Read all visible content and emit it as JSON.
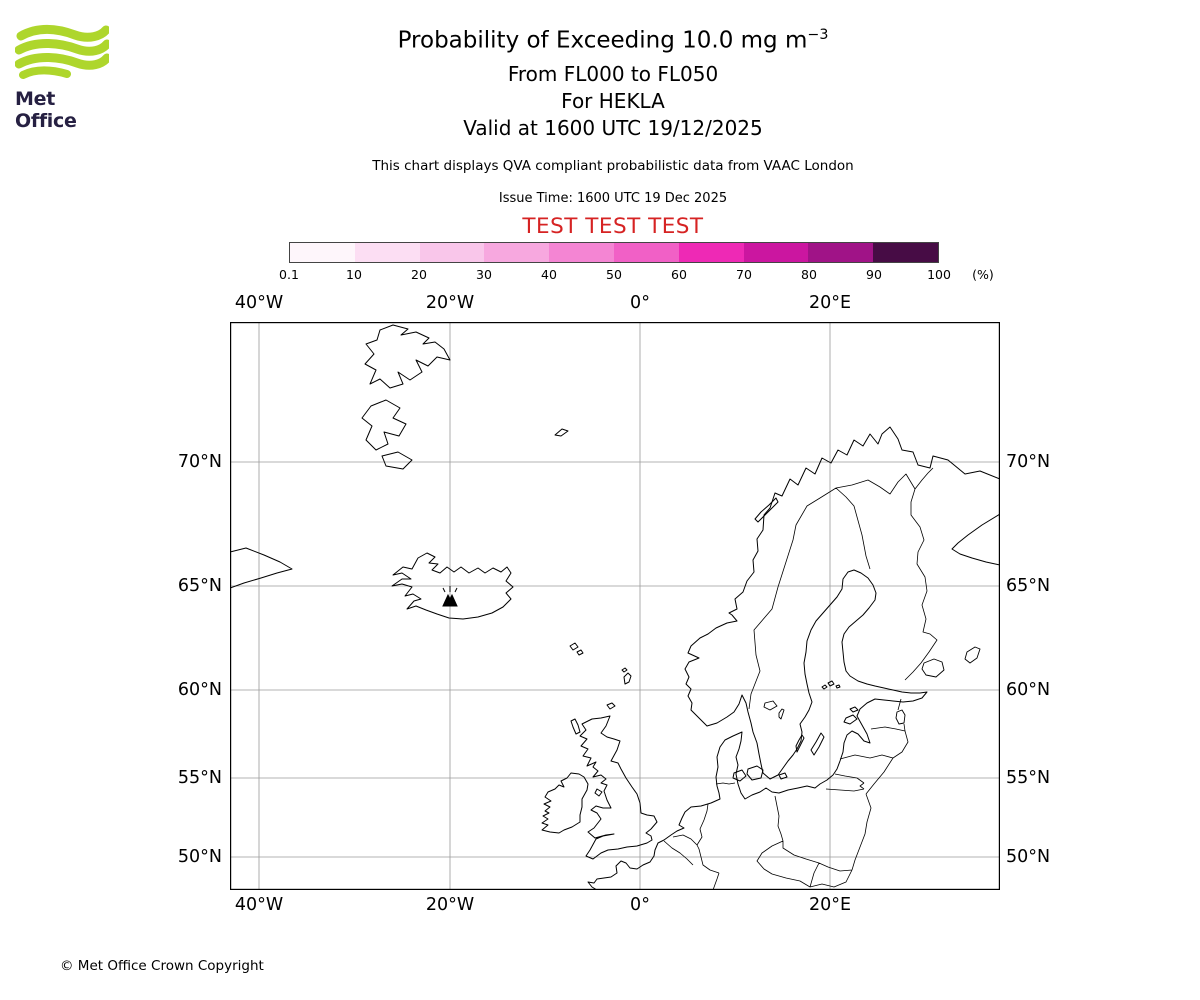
{
  "logo": {
    "text": "Met Office",
    "green": "#aed62c",
    "text_color": "#262042"
  },
  "header": {
    "title": "Probability of Exceeding 10.0 mg m",
    "title_sup": "−3",
    "subtitle_fl": "From FL000 to FL050",
    "subtitle_volcano": "For HEKLA",
    "subtitle_valid": "Valid at 1600 UTC 19/12/2025",
    "disclaimer": "This chart displays QVA compliant probabilistic data from VAAC London",
    "issue_time": "Issue Time: 1600 UTC 19 Dec 2025",
    "test_banner": "TEST TEST TEST",
    "test_color": "#d62323"
  },
  "legend": {
    "tick_labels": [
      "0.1",
      "10",
      "20",
      "30",
      "40",
      "50",
      "60",
      "70",
      "80",
      "90",
      "100"
    ],
    "unit_label": "(%)",
    "colors": [
      "#fef6fb",
      "#fcdef3",
      "#f9c6ea",
      "#f7a8df",
      "#f485d3",
      "#f160c6",
      "#ee29b5",
      "#cb16a0",
      "#a01387",
      "#470c45"
    ]
  },
  "map": {
    "lon_labels": [
      "40°W",
      "20°W",
      "0°",
      "20°E"
    ],
    "lat_labels": [
      "70°N",
      "65°N",
      "60°N",
      "55°N",
      "50°N"
    ]
  },
  "footer": {
    "copyright": "© Met Office Crown Copyright"
  }
}
